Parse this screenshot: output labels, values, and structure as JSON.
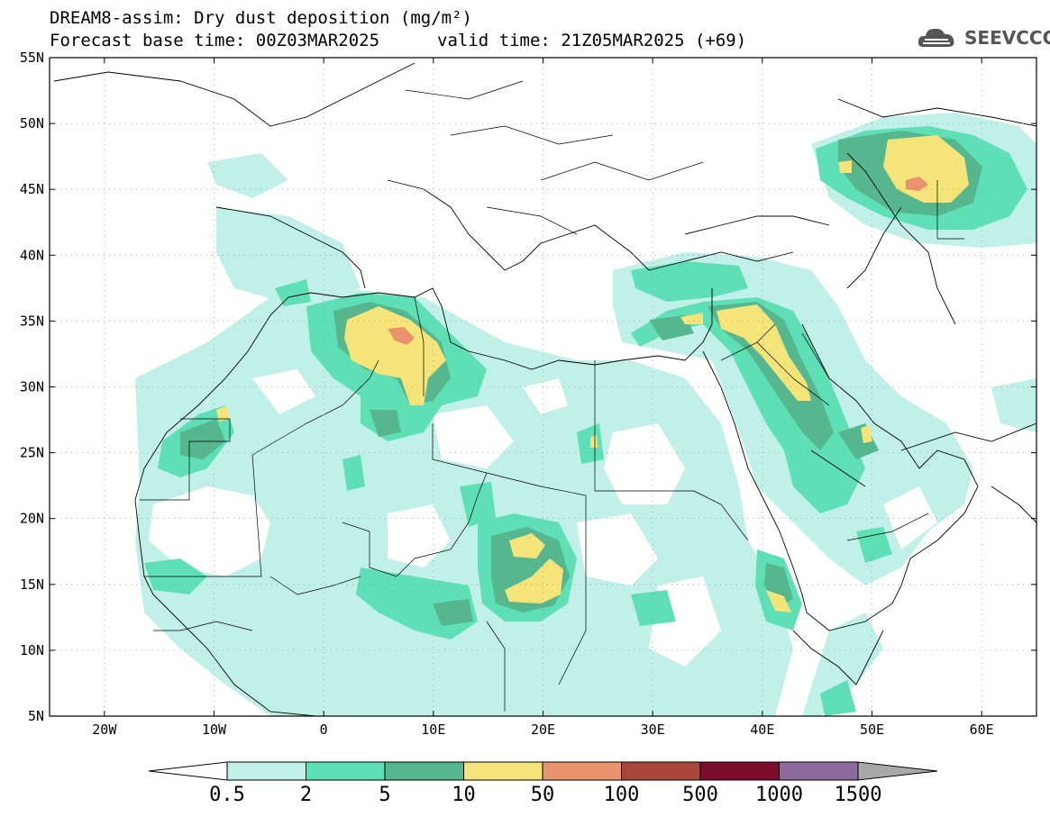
{
  "header": {
    "title": "DREAM8-assim: Dry dust deposition (mg/m²)",
    "base_time": "Forecast base time: 00Z03MAR2025",
    "valid_time": "valid time: 21Z05MAR2025 (+69)"
  },
  "logo": {
    "text": "SEEVCCC",
    "icon": "cloud-icon"
  },
  "map": {
    "lat_labels": [
      "55N",
      "50N",
      "45N",
      "40N",
      "35N",
      "30N",
      "25N",
      "20N",
      "15N",
      "10N",
      "5N"
    ],
    "lon_labels": [
      "20W",
      "10W",
      "0",
      "10E",
      "20E",
      "30E",
      "40E",
      "50E",
      "60E"
    ],
    "lon_range": [
      -25,
      65
    ],
    "lat_range": [
      5,
      55
    ]
  },
  "colorbar": {
    "labels": [
      "0.5",
      "2",
      "5",
      "10",
      "50",
      "100",
      "500",
      "1000",
      "1500"
    ],
    "colors": [
      "#c1f0e8",
      "#5edfb5",
      "#56b68e",
      "#f4e47a",
      "#e8936b",
      "#a8463b",
      "#7a0e2c",
      "#8c6a9c"
    ],
    "under_color": "#ffffff",
    "over_color": "#a8a8a8"
  }
}
